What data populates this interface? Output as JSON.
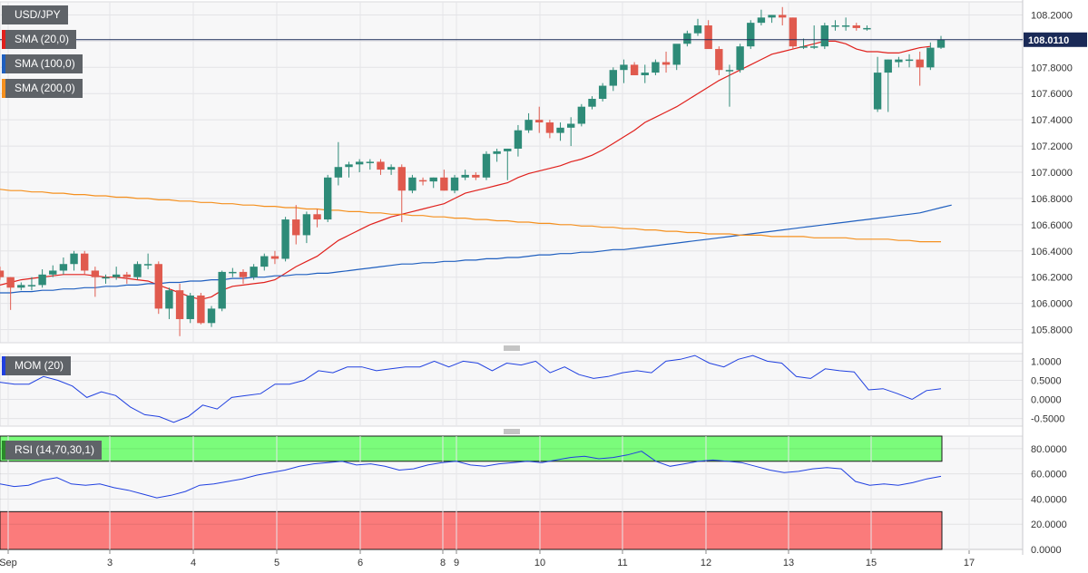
{
  "labels": {
    "symbol": "USD/JPY",
    "sma20": "SMA (20,0)",
    "sma100": "SMA (100,0)",
    "sma200": "SMA (200,0)",
    "mom": "MOM (20)",
    "rsi": "RSI (14,70,30,1)"
  },
  "colors": {
    "up": "#2e8b78",
    "down": "#e05a4e",
    "sma20": "#e0201c",
    "sma100": "#1f5fbf",
    "sma200": "#f5901e",
    "mom": "#2040e0",
    "rsi": "#2040e0",
    "overbought_zone": "#7bfc7b",
    "oversold_zone": "#fb7b7b",
    "last_price_tag": "#1a2a57"
  },
  "chart_data": [
    {
      "type": "candlestick",
      "title": "USD/JPY",
      "last_price": "108.0110",
      "ylim": [
        105.7,
        108.3
      ],
      "yticks": [
        "108.2000",
        "108.0000",
        "107.8000",
        "107.6000",
        "107.4000",
        "107.2000",
        "107.0000",
        "106.8000",
        "106.6000",
        "106.4000",
        "106.2000",
        "106.0000",
        "105.8000"
      ],
      "xticks": [
        "Sep",
        "3",
        "4",
        "5",
        "6",
        "8",
        "9",
        "10",
        "11",
        "12",
        "13",
        "15",
        "17"
      ],
      "candles": [
        [
          106.25,
          106.28,
          106.18,
          106.2
        ],
        [
          106.2,
          106.2,
          105.95,
          106.12
        ],
        [
          106.12,
          106.16,
          106.1,
          106.14
        ],
        [
          106.14,
          106.2,
          106.1,
          106.14
        ],
        [
          106.14,
          106.26,
          106.12,
          106.22
        ],
        [
          106.22,
          106.29,
          106.2,
          106.25
        ],
        [
          106.25,
          106.35,
          106.22,
          106.3
        ],
        [
          106.3,
          106.4,
          106.25,
          106.38
        ],
        [
          106.38,
          106.4,
          106.22,
          106.25
        ],
        [
          106.25,
          106.28,
          106.05,
          106.2
        ],
        [
          106.2,
          106.22,
          106.15,
          106.2
        ],
        [
          106.2,
          106.28,
          106.18,
          106.22
        ],
        [
          106.22,
          106.24,
          106.15,
          106.2
        ],
        [
          106.2,
          106.32,
          106.18,
          106.3
        ],
        [
          106.3,
          106.38,
          106.26,
          106.3
        ],
        [
          106.3,
          106.32,
          105.92,
          105.96
        ],
        [
          105.96,
          106.12,
          105.88,
          106.1
        ],
        [
          106.1,
          106.15,
          105.75,
          105.88
        ],
        [
          105.88,
          106.08,
          105.85,
          106.06
        ],
        [
          106.06,
          106.08,
          105.84,
          105.85
        ],
        [
          105.85,
          105.98,
          105.82,
          105.96
        ],
        [
          105.96,
          106.25,
          105.94,
          106.24
        ],
        [
          106.24,
          106.27,
          106.2,
          106.24
        ],
        [
          106.24,
          106.26,
          106.15,
          106.2
        ],
        [
          106.2,
          106.3,
          106.18,
          106.28
        ],
        [
          106.28,
          106.38,
          106.25,
          106.36
        ],
        [
          106.36,
          106.4,
          106.3,
          106.34
        ],
        [
          106.34,
          106.66,
          106.32,
          106.64
        ],
        [
          106.64,
          106.75,
          106.45,
          106.52
        ],
        [
          106.52,
          106.7,
          106.46,
          106.68
        ],
        [
          106.68,
          106.72,
          106.58,
          106.64
        ],
        [
          106.64,
          106.98,
          106.62,
          106.96
        ],
        [
          106.96,
          107.23,
          106.9,
          107.04
        ],
        [
          107.04,
          107.08,
          106.96,
          107.06
        ],
        [
          107.06,
          107.1,
          107.0,
          107.08
        ],
        [
          107.08,
          107.1,
          107.02,
          107.08
        ],
        [
          107.08,
          107.1,
          106.98,
          107.02
        ],
        [
          107.02,
          107.06,
          106.98,
          107.04
        ],
        [
          107.04,
          107.06,
          106.62,
          106.86
        ],
        [
          106.86,
          106.98,
          106.84,
          106.96
        ],
        [
          106.94,
          106.96,
          106.9,
          106.93
        ],
        [
          106.93,
          106.96,
          106.88,
          106.96
        ],
        [
          106.96,
          107.02,
          106.86,
          106.86
        ],
        [
          106.86,
          106.98,
          106.84,
          106.96
        ],
        [
          106.96,
          107.02,
          106.94,
          106.98
        ],
        [
          106.98,
          107.0,
          106.94,
          106.96
        ],
        [
          106.96,
          107.16,
          106.94,
          107.14
        ],
        [
          107.14,
          107.18,
          107.08,
          107.16
        ],
        [
          107.16,
          107.18,
          106.94,
          107.18
        ],
        [
          107.18,
          107.36,
          107.12,
          107.32
        ],
        [
          107.32,
          107.45,
          107.3,
          107.4
        ],
        [
          107.4,
          107.5,
          107.3,
          107.38
        ],
        [
          107.38,
          107.4,
          107.26,
          107.3
        ],
        [
          107.3,
          107.38,
          107.24,
          107.34
        ],
        [
          107.34,
          107.42,
          107.2,
          107.37
        ],
        [
          107.37,
          107.52,
          107.35,
          107.5
        ],
        [
          107.5,
          107.58,
          107.48,
          107.56
        ],
        [
          107.56,
          107.68,
          107.54,
          107.66
        ],
        [
          107.66,
          107.8,
          107.62,
          107.78
        ],
        [
          107.78,
          107.86,
          107.68,
          107.82
        ],
        [
          107.82,
          107.84,
          107.74,
          107.74
        ],
        [
          107.74,
          107.82,
          107.68,
          107.76
        ],
        [
          107.76,
          107.86,
          107.74,
          107.84
        ],
        [
          107.84,
          107.92,
          107.76,
          107.82
        ],
        [
          107.82,
          107.96,
          107.78,
          107.98
        ],
        [
          107.98,
          108.08,
          107.96,
          108.06
        ],
        [
          108.06,
          108.17,
          108.04,
          108.12
        ],
        [
          108.12,
          108.16,
          107.96,
          107.94
        ],
        [
          107.94,
          107.96,
          107.74,
          107.78
        ],
        [
          107.78,
          107.82,
          107.5,
          107.78
        ],
        [
          107.78,
          107.98,
          107.76,
          107.96
        ],
        [
          107.96,
          108.16,
          107.94,
          108.14
        ],
        [
          108.14,
          108.24,
          108.12,
          108.18
        ],
        [
          108.18,
          108.2,
          108.14,
          108.2
        ],
        [
          108.2,
          108.26,
          108.12,
          108.18
        ],
        [
          108.18,
          108.18,
          107.94,
          107.96
        ],
        [
          107.96,
          108.02,
          107.94,
          107.96
        ],
        [
          107.96,
          108.12,
          107.94,
          107.96
        ],
        [
          107.96,
          108.14,
          107.94,
          108.12
        ],
        [
          108.12,
          108.16,
          108.08,
          108.12
        ],
        [
          108.12,
          108.18,
          108.08,
          108.12
        ],
        [
          108.12,
          108.14,
          108.08,
          108.1
        ],
        [
          108.1,
          108.12,
          108.08,
          108.1
        ],
        [
          107.48,
          107.88,
          107.46,
          107.76
        ],
        [
          107.76,
          107.86,
          107.46,
          107.86
        ],
        [
          107.84,
          107.88,
          107.8,
          107.86
        ],
        [
          107.86,
          107.9,
          107.8,
          107.86
        ],
        [
          107.86,
          107.92,
          107.66,
          107.8
        ],
        [
          107.8,
          107.99,
          107.78,
          107.95
        ],
        [
          107.95,
          108.04,
          107.94,
          108.01
        ]
      ],
      "series": [
        {
          "name": "SMA (20,0)",
          "values": [
            106.14,
            106.16,
            106.18,
            106.19,
            106.2,
            106.21,
            106.22,
            106.22,
            106.22,
            106.21,
            106.2,
            106.2,
            106.19,
            106.18,
            106.17,
            106.14,
            106.11,
            106.08,
            106.05,
            106.03,
            106.05,
            106.1,
            106.13,
            106.14,
            106.15,
            106.16,
            106.18,
            106.23,
            106.28,
            106.32,
            106.36,
            106.42,
            106.48,
            106.52,
            106.56,
            106.6,
            106.63,
            106.66,
            106.68,
            106.7,
            106.72,
            106.74,
            106.76,
            106.8,
            106.84,
            106.86,
            106.88,
            106.9,
            106.92,
            106.96,
            106.99,
            107.01,
            107.03,
            107.05,
            107.08,
            107.1,
            107.13,
            107.17,
            107.22,
            107.27,
            107.32,
            107.38,
            107.42,
            107.46,
            107.5,
            107.55,
            107.6,
            107.65,
            107.7,
            107.74,
            107.78,
            107.82,
            107.86,
            107.9,
            107.92,
            107.94,
            107.96,
            107.98,
            108.0,
            108.0,
            107.98,
            107.94,
            107.92,
            107.92,
            107.91,
            107.91,
            107.93,
            107.95,
            107.96
          ]
        },
        {
          "name": "SMA (100,0)",
          "values": [
            106.08,
            106.08,
            106.09,
            106.09,
            106.1,
            106.1,
            106.11,
            106.11,
            106.12,
            106.12,
            106.13,
            106.13,
            106.14,
            106.14,
            106.15,
            106.15,
            106.16,
            106.16,
            106.17,
            106.17,
            106.18,
            106.18,
            106.19,
            106.19,
            106.2,
            106.2,
            106.21,
            106.21,
            106.22,
            106.22,
            106.23,
            106.23,
            106.24,
            106.25,
            106.26,
            106.27,
            106.28,
            106.29,
            106.3,
            106.3,
            106.31,
            106.31,
            106.32,
            106.32,
            106.33,
            106.33,
            106.34,
            106.34,
            106.35,
            106.35,
            106.36,
            106.37,
            106.37,
            106.38,
            106.38,
            106.39,
            106.39,
            106.4,
            106.41,
            106.41,
            106.42,
            106.43,
            106.44,
            106.45,
            106.46,
            106.47,
            106.48,
            106.49,
            106.5,
            106.51,
            106.52,
            106.53,
            106.54,
            106.55,
            106.56,
            106.57,
            106.58,
            106.59,
            106.6,
            106.61,
            106.62,
            106.63,
            106.64,
            106.65,
            106.66,
            106.67,
            106.68,
            106.69,
            106.71,
            106.73,
            106.75
          ]
        },
        {
          "name": "SMA (200,0)",
          "values": [
            106.87,
            106.86,
            106.86,
            106.85,
            106.85,
            106.84,
            106.84,
            106.83,
            106.83,
            106.82,
            106.82,
            106.81,
            106.81,
            106.8,
            106.8,
            106.79,
            106.79,
            106.78,
            106.78,
            106.77,
            106.77,
            106.76,
            106.76,
            106.75,
            106.75,
            106.74,
            106.74,
            106.73,
            106.73,
            106.72,
            106.72,
            106.71,
            106.71,
            106.7,
            106.7,
            106.69,
            106.69,
            106.68,
            106.68,
            106.67,
            106.67,
            106.66,
            106.66,
            106.65,
            106.65,
            106.64,
            106.64,
            106.63,
            106.63,
            106.62,
            106.62,
            106.61,
            106.61,
            106.6,
            106.6,
            106.59,
            106.59,
            106.58,
            106.58,
            106.57,
            106.57,
            106.56,
            106.56,
            106.55,
            106.55,
            106.54,
            106.54,
            106.53,
            106.53,
            106.53,
            106.52,
            106.52,
            106.52,
            106.51,
            106.51,
            106.51,
            106.51,
            106.5,
            106.5,
            106.5,
            106.5,
            106.49,
            106.49,
            106.49,
            106.49,
            106.48,
            106.48,
            106.47,
            106.47,
            106.47
          ]
        }
      ]
    },
    {
      "type": "line",
      "title": "MOM (20)",
      "ylim": [
        -0.7,
        1.2
      ],
      "yticks": [
        "1.0000",
        "0.5000",
        "0.0000",
        "-0.5000"
      ],
      "series": [
        {
          "name": "MOM (20)",
          "values": [
            0.45,
            0.4,
            0.4,
            0.6,
            0.5,
            0.35,
            0.05,
            0.2,
            0.1,
            -0.2,
            -0.4,
            -0.45,
            -0.6,
            -0.45,
            -0.15,
            -0.25,
            0.05,
            0.1,
            0.15,
            0.4,
            0.4,
            0.5,
            0.75,
            0.7,
            0.85,
            0.85,
            0.75,
            0.8,
            0.85,
            0.85,
            1.0,
            0.85,
            1.0,
            0.95,
            0.75,
            0.95,
            0.9,
            1.0,
            0.7,
            0.85,
            0.65,
            0.55,
            0.6,
            0.7,
            0.75,
            0.7,
            1.0,
            1.05,
            1.15,
            0.95,
            0.85,
            1.05,
            1.15,
            1.0,
            0.95,
            0.6,
            0.55,
            0.8,
            0.75,
            0.72,
            0.25,
            0.28,
            0.15,
            0.0,
            0.23,
            0.28
          ]
        }
      ]
    },
    {
      "type": "line",
      "title": "RSI (14,70,30,1)",
      "ylim": [
        0,
        90
      ],
      "yticks": [
        "80.0000",
        "60.0000",
        "40.0000",
        "20.0000",
        "0.0000"
      ],
      "overbought": 70,
      "oversold": 30,
      "series": [
        {
          "name": "RSI (14,70,30,1)",
          "values": [
            52,
            50,
            51,
            55,
            57,
            52,
            51,
            52,
            49,
            47,
            44,
            41,
            43,
            46,
            51,
            52,
            54,
            56,
            59,
            61,
            63,
            66,
            68,
            69,
            70,
            67,
            68,
            66,
            63,
            64,
            67,
            69,
            70,
            67,
            66,
            68,
            69,
            70,
            69,
            71,
            73,
            74,
            72,
            73,
            75,
            78,
            70,
            66,
            68,
            70,
            71,
            70,
            69,
            66,
            63,
            61,
            62,
            64,
            65,
            64,
            54,
            51,
            52,
            51,
            53,
            56,
            58
          ]
        }
      ]
    }
  ]
}
